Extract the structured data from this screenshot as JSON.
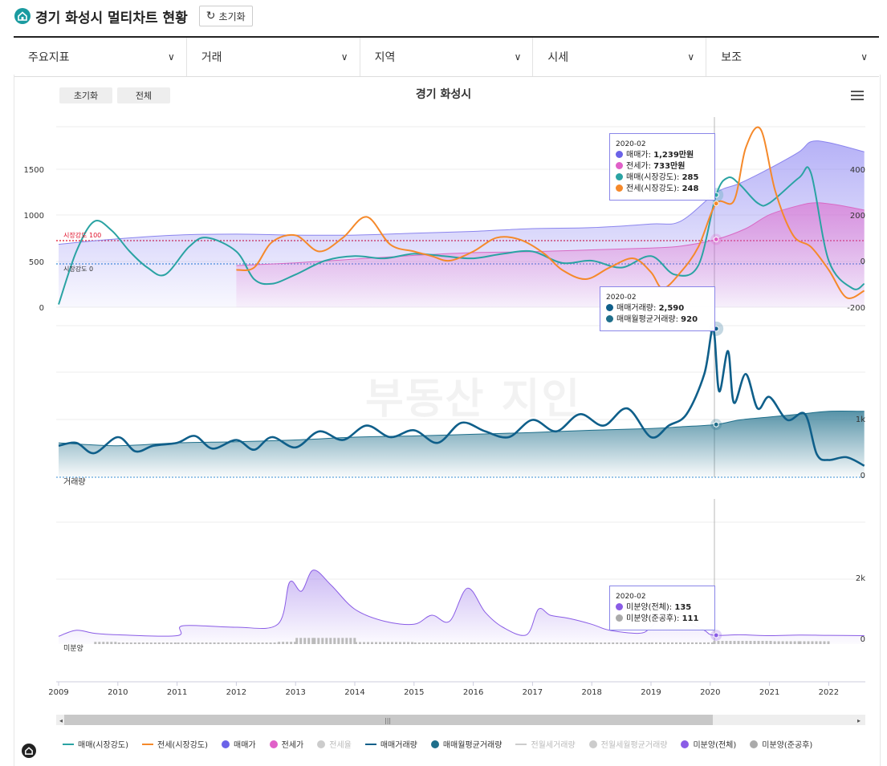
{
  "header": {
    "title": "경기 화성시 멀티차트 현황",
    "reset_label": "초기화"
  },
  "dropdowns": [
    "주요지표",
    "거래",
    "지역",
    "시세",
    "보조"
  ],
  "chart_buttons": {
    "reset": "초기화",
    "all": "전체"
  },
  "chart_data": {
    "type": "line",
    "title": "경기 화성시",
    "x_ticks": [
      "2009",
      "2010",
      "2011",
      "2012",
      "2013",
      "2014",
      "2015",
      "2016",
      "2017",
      "2018",
      "2019",
      "2020",
      "2021",
      "2022"
    ],
    "panels": [
      {
        "name": "price",
        "left_axis_ticks": [
          "0",
          "500",
          "1000",
          "1500"
        ],
        "right_axis_ticks": [
          "-200",
          "0",
          "200",
          "400"
        ],
        "reference_lines": [
          {
            "label": "시장강도 100",
            "color": "#e0102a"
          },
          {
            "label": "시장강도 0",
            "color": "#3b8fd6"
          }
        ],
        "series": [
          {
            "name": "매매가",
            "type": "area",
            "color": "#6b63e8",
            "x": [
              2009,
              2010,
              2011,
              2012,
              2013,
              2014,
              2015,
              2016,
              2017,
              2018,
              2019,
              2019.5,
              2020.1,
              2020.5,
              2021,
              2021.5,
              2021.7,
              2022,
              2022.6
            ],
            "values": [
              680,
              740,
              780,
              790,
              780,
              780,
              800,
              820,
              850,
              860,
              900,
              930,
              1239,
              1340,
              1500,
              1680,
              1790,
              1780,
              1680
            ]
          },
          {
            "name": "전세가",
            "type": "area",
            "color": "#e060c8",
            "x": [
              2012,
              2013,
              2014,
              2015,
              2016,
              2017,
              2018,
              2019,
              2019.5,
              2020.1,
              2020.6,
              2021,
              2021.5,
              2021.8,
              2022.2,
              2022.6
            ],
            "values": [
              450,
              480,
              520,
              560,
              590,
              600,
              620,
              640,
              660,
              733,
              850,
              1000,
              1100,
              1130,
              1100,
              1050
            ]
          },
          {
            "name": "매매(시장강도)",
            "type": "line",
            "color": "#2aa3a3",
            "x": [
              2009,
              2009.3,
              2009.6,
              2009.9,
              2010.2,
              2010.5,
              2010.8,
              2011.2,
              2011.5,
              2012,
              2012.3,
              2012.6,
              2013,
              2013.5,
              2014,
              2014.5,
              2015,
              2015.5,
              2016,
              2016.5,
              2017,
              2017.5,
              2018,
              2018.5,
              2019,
              2019.4,
              2019.8,
              2020.1,
              2020.3,
              2020.5,
              2020.8,
              2021,
              2021.5,
              2021.7,
              2022,
              2022.4,
              2022.6
            ],
            "values": [
              -190,
              40,
              170,
              130,
              40,
              -30,
              -60,
              60,
              100,
              40,
              -80,
              -100,
              -60,
              0,
              20,
              10,
              30,
              20,
              10,
              30,
              40,
              -10,
              0,
              -30,
              20,
              -60,
              -20,
              285,
              360,
              330,
              250,
              250,
              360,
              380,
              0,
              -120,
              -100
            ]
          },
          {
            "name": "전세(시장강도)",
            "type": "line",
            "color": "#f5892a",
            "x": [
              2012,
              2012.3,
              2012.6,
              2013,
              2013.4,
              2013.8,
              2014.2,
              2014.6,
              2015,
              2015.3,
              2015.6,
              2016,
              2016.4,
              2016.8,
              2017.2,
              2017.5,
              2017.9,
              2018.3,
              2018.7,
              2019,
              2019.2,
              2019.5,
              2019.8,
              2020.1,
              2020.4,
              2020.6,
              2020.85,
              2021.1,
              2021.4,
              2021.7,
              2022,
              2022.3,
              2022.6
            ],
            "values": [
              -40,
              -30,
              80,
              110,
              40,
              100,
              190,
              70,
              40,
              20,
              0,
              40,
              100,
              90,
              30,
              -40,
              -80,
              -30,
              10,
              -50,
              -120,
              -50,
              60,
              248,
              260,
              490,
              570,
              300,
              110,
              60,
              -40,
              -160,
              -130
            ]
          }
        ]
      },
      {
        "name": "volume",
        "right_axis_ticks": [
          "0",
          "1k"
        ],
        "axis_label": "거래량",
        "series": [
          {
            "name": "매매거래량",
            "type": "line",
            "color": "#0f5f8a",
            "x": [
              2009,
              2009.3,
              2009.6,
              2010,
              2010.3,
              2010.6,
              2011,
              2011.3,
              2011.6,
              2012,
              2012.3,
              2012.6,
              2013,
              2013.4,
              2013.8,
              2014.2,
              2014.6,
              2015,
              2015.4,
              2015.8,
              2016.2,
              2016.6,
              2017,
              2017.4,
              2017.8,
              2018.2,
              2018.6,
              2019,
              2019.3,
              2019.6,
              2019.9,
              2020.05,
              2020.15,
              2020.3,
              2020.4,
              2020.6,
              2020.8,
              2021,
              2021.3,
              2021.6,
              2021.8,
              2022,
              2022.3,
              2022.6
            ],
            "values": [
              550,
              600,
              420,
              700,
              450,
              550,
              600,
              720,
              500,
              650,
              480,
              700,
              520,
              800,
              650,
              900,
              700,
              820,
              600,
              950,
              800,
              700,
              1000,
              800,
              1100,
              900,
              1200,
              700,
              900,
              1100,
              1800,
              2590,
              1500,
              2200,
              1300,
              1800,
              1200,
              1400,
              1000,
              1100,
              400,
              300,
              350,
              200
            ]
          },
          {
            "name": "매매월평균거래량",
            "type": "area",
            "color": "#1f6f8b",
            "x": [
              2009,
              2010,
              2011,
              2012,
              2013,
              2014,
              2015,
              2016,
              2017,
              2018,
              2019,
              2019.5,
              2020.1,
              2020.5,
              2021,
              2021.5,
              2022,
              2022.6
            ],
            "values": [
              600,
              550,
              600,
              620,
              650,
              700,
              720,
              750,
              780,
              820,
              850,
              880,
              920,
              1000,
              1050,
              1100,
              1150,
              1150
            ]
          }
        ]
      },
      {
        "name": "unsold",
        "right_axis_ticks": [
          "0",
          "2k"
        ],
        "axis_label": "미분양",
        "series": [
          {
            "name": "미분양(전체)",
            "type": "area",
            "color": "#8a5ce6",
            "x": [
              2009,
              2009.3,
              2009.6,
              2010,
              2011,
              2011.1,
              2012,
              2012.7,
              2012.9,
              2013.1,
              2013.3,
              2013.6,
              2014,
              2014.5,
              2015,
              2015.3,
              2015.6,
              2015.9,
              2016.2,
              2016.5,
              2016.9,
              2017.1,
              2017.3,
              2017.6,
              2018,
              2018.3,
              2018.8,
              2019,
              2019.3,
              2019.6,
              2019.9,
              2020.05,
              2020.5,
              2021,
              2021.5,
              2022,
              2022.6
            ],
            "values": [
              100,
              300,
              200,
              150,
              120,
              450,
              400,
              500,
              1900,
              1600,
              2300,
              1800,
              1000,
              600,
              500,
              800,
              600,
              1700,
              900,
              400,
              150,
              1000,
              800,
              700,
              500,
              300,
              200,
              400,
              1000,
              600,
              300,
              135,
              150,
              120,
              140,
              130,
              120
            ]
          },
          {
            "name": "미분양(준공후)",
            "type": "bar",
            "color": "#aaaaaa",
            "x": [
              2009.6,
              2010,
              2011,
              2012.7,
              2013,
              2013.3,
              2014,
              2015,
              2016,
              2017,
              2018,
              2019,
              2020.05,
              2021,
              2021.5,
              2022
            ],
            "values": [
              80,
              40,
              40,
              80,
              220,
              220,
              70,
              40,
              40,
              30,
              40,
              60,
              111,
              100,
              100,
              90
            ]
          }
        ]
      }
    ],
    "tooltips": [
      {
        "date": "2020-02",
        "items": [
          {
            "label": "매매가",
            "value": "1,239만원",
            "color": "#6b63e8"
          },
          {
            "label": "전세가",
            "value": "733만원",
            "color": "#e060c8"
          },
          {
            "label": "매매(시장강도)",
            "value": "285",
            "color": "#2aa3a3"
          },
          {
            "label": "전세(시장강도)",
            "value": "248",
            "color": "#f5892a"
          }
        ]
      },
      {
        "date": "2020-02",
        "items": [
          {
            "label": "매매거래량",
            "value": "2,590",
            "color": "#0f5f8a"
          },
          {
            "label": "매매월평균거래량",
            "value": "920",
            "color": "#1f6f8b"
          }
        ]
      },
      {
        "date": "2020-02",
        "items": [
          {
            "label": "미분양(전체)",
            "value": "135",
            "color": "#8a5ce6"
          },
          {
            "label": "미분양(준공후)",
            "value": "111",
            "color": "#aaaaaa"
          }
        ]
      }
    ],
    "legend": [
      {
        "label": "매매(시장강도)",
        "kind": "line",
        "color": "#2aa3a3",
        "active": true
      },
      {
        "label": "전세(시장강도)",
        "kind": "line",
        "color": "#f5892a",
        "active": true
      },
      {
        "label": "매매가",
        "kind": "dot",
        "color": "#6b63e8",
        "active": true
      },
      {
        "label": "전세가",
        "kind": "dot",
        "color": "#e060c8",
        "active": true
      },
      {
        "label": "전세율",
        "kind": "dot",
        "color": "#cccccc",
        "active": false
      },
      {
        "label": "매매거래량",
        "kind": "line",
        "color": "#0f5f8a",
        "active": true
      },
      {
        "label": "매매월평균거래량",
        "kind": "dot",
        "color": "#1f6f8b",
        "active": true
      },
      {
        "label": "전월세거래량",
        "kind": "line",
        "color": "#cccccc",
        "active": false
      },
      {
        "label": "전월세월평균거래량",
        "kind": "dot",
        "color": "#cccccc",
        "active": false
      },
      {
        "label": "미분양(전체)",
        "kind": "dot",
        "color": "#8a5ce6",
        "active": true
      },
      {
        "label": "미분양(준공후)",
        "kind": "dot",
        "color": "#aaaaaa",
        "active": true
      }
    ]
  }
}
